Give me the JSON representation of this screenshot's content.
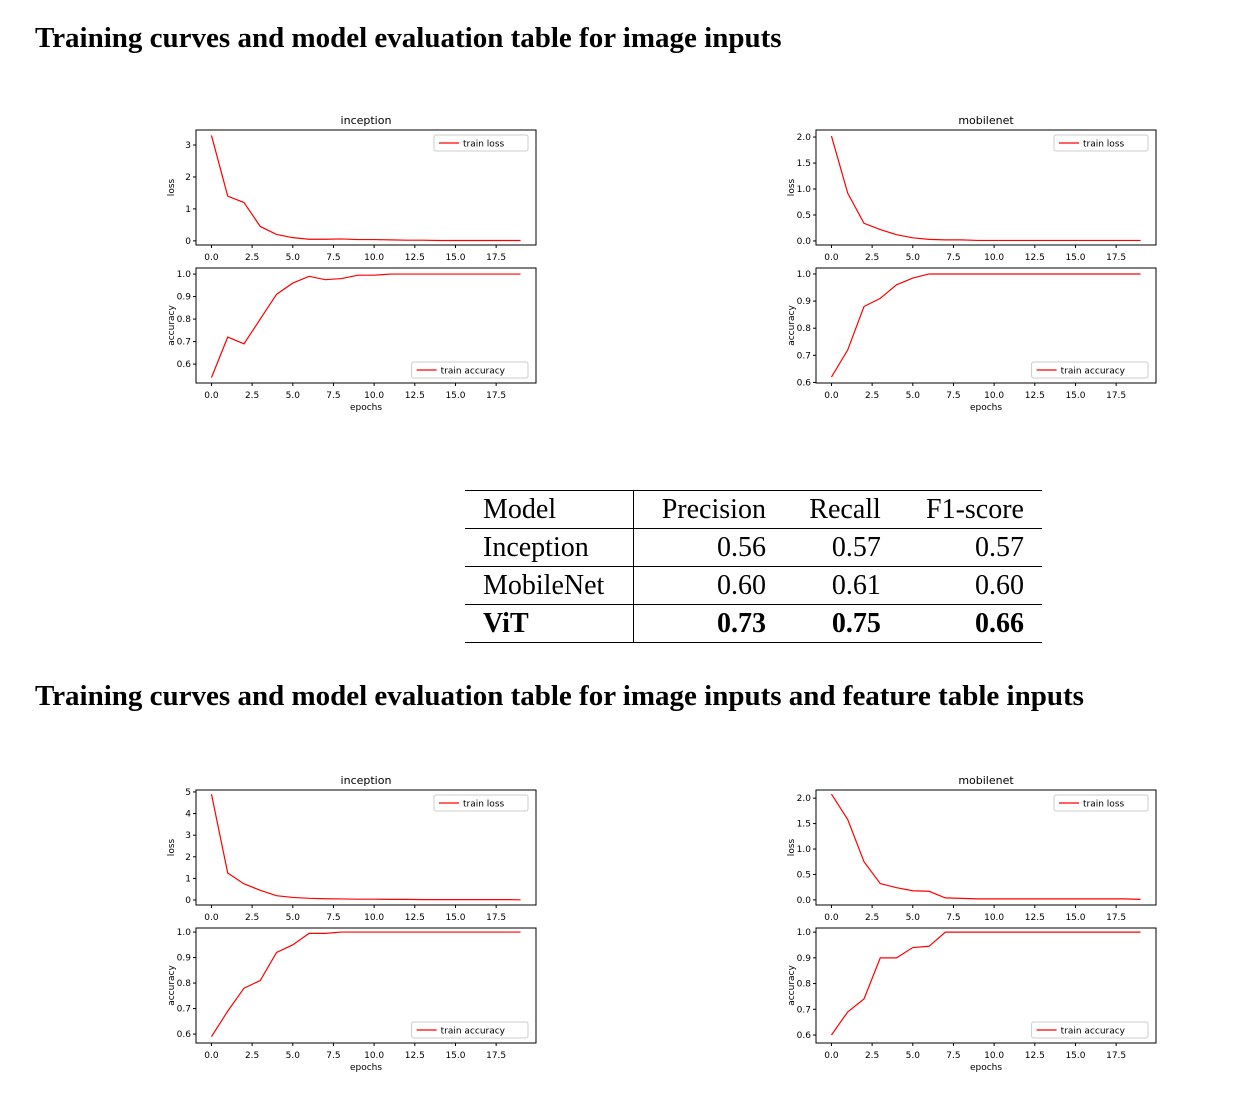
{
  "headings": [
    "Training curves and model evaluation table for image inputs",
    "Training curves and model evaluation table for image inputs and feature table inputs"
  ],
  "chart_data": [
    {
      "type": "line",
      "title": "inception",
      "ylabel": "loss",
      "legend": "upper right",
      "x": [
        0,
        1,
        2,
        3,
        4,
        5,
        6,
        7,
        8,
        9,
        10,
        11,
        12,
        13,
        14,
        15,
        16,
        17,
        18,
        19
      ],
      "xlim": [
        -0.95,
        19.95
      ],
      "xticks": [
        {
          "value": 0,
          "label": "0.0"
        },
        2.5,
        {
          "value": 5,
          "label": "5.0"
        },
        7.5,
        {
          "value": 10,
          "label": "10.0"
        },
        12.5,
        {
          "value": 15,
          "label": "15.0"
        },
        17.5
      ],
      "ylim": [
        -0.13,
        3.47
      ],
      "yticks": [
        0,
        1,
        2,
        3
      ],
      "series": [
        {
          "name": "train loss",
          "color": "#ff0000",
          "values": [
            3.3,
            1.4,
            1.2,
            0.45,
            0.2,
            0.1,
            0.05,
            0.05,
            0.06,
            0.04,
            0.04,
            0.03,
            0.02,
            0.02,
            0.01,
            0.01,
            0.01,
            0.01,
            0.01,
            0.01
          ]
        }
      ]
    },
    {
      "type": "line",
      "ylabel": "accuracy",
      "xlabel": "epochs",
      "legend": "lower right",
      "x": [
        0,
        1,
        2,
        3,
        4,
        5,
        6,
        7,
        8,
        9,
        10,
        11,
        12,
        13,
        14,
        15,
        16,
        17,
        18,
        19
      ],
      "xlim": [
        -0.95,
        19.95
      ],
      "xticks": [
        {
          "value": 0,
          "label": "0.0"
        },
        2.5,
        {
          "value": 5,
          "label": "5.0"
        },
        7.5,
        {
          "value": 10,
          "label": "10.0"
        },
        12.5,
        {
          "value": 15,
          "label": "15.0"
        },
        17.5
      ],
      "ylim": [
        0.516,
        1.027
      ],
      "yticks": [
        0.6,
        0.7,
        0.8,
        0.9,
        {
          "value": 1,
          "label": "1.0"
        }
      ],
      "series": [
        {
          "name": "train accuracy",
          "color": "#ff0000",
          "values": [
            0.54,
            0.72,
            0.69,
            0.8,
            0.91,
            0.96,
            0.99,
            0.975,
            0.98,
            0.995,
            0.995,
            1,
            1,
            1,
            1,
            1,
            1,
            1,
            1,
            1
          ]
        }
      ]
    },
    {
      "type": "line",
      "title": "mobilenet",
      "ylabel": "loss",
      "legend": "upper right",
      "x": [
        0,
        1,
        2,
        3,
        4,
        5,
        6,
        7,
        8,
        9,
        10,
        11,
        12,
        13,
        14,
        15,
        16,
        17,
        18,
        19
      ],
      "xlim": [
        -0.95,
        19.95
      ],
      "xticks": [
        {
          "value": 0,
          "label": "0.0"
        },
        2.5,
        {
          "value": 5,
          "label": "5.0"
        },
        7.5,
        {
          "value": 10,
          "label": "10.0"
        },
        12.5,
        {
          "value": 15,
          "label": "15.0"
        },
        17.5
      ],
      "ylim": [
        -0.078,
        2.136
      ],
      "yticks": [
        {
          "value": 0,
          "label": "0.0"
        },
        0.5,
        {
          "value": 1,
          "label": "1.0"
        },
        1.5,
        {
          "value": 2,
          "label": "2.0"
        }
      ],
      "series": [
        {
          "name": "train loss",
          "color": "#ff0000",
          "values": [
            2.02,
            0.92,
            0.34,
            0.22,
            0.12,
            0.06,
            0.03,
            0.02,
            0.02,
            0.01,
            0.01,
            0.01,
            0.01,
            0.01,
            0.01,
            0.01,
            0.01,
            0.01,
            0.01,
            0.01
          ]
        }
      ]
    },
    {
      "type": "line",
      "ylabel": "accuracy",
      "xlabel": "epochs",
      "legend": "lower right",
      "x": [
        0,
        1,
        2,
        3,
        4,
        5,
        6,
        7,
        8,
        9,
        10,
        11,
        12,
        13,
        14,
        15,
        16,
        17,
        18,
        19
      ],
      "xlim": [
        -0.95,
        19.95
      ],
      "xticks": [
        {
          "value": 0,
          "label": "0.0"
        },
        2.5,
        {
          "value": 5,
          "label": "5.0"
        },
        7.5,
        {
          "value": 10,
          "label": "10.0"
        },
        12.5,
        {
          "value": 15,
          "label": "15.0"
        },
        17.5
      ],
      "ylim": [
        0.598,
        1.022
      ],
      "yticks": [
        0.6,
        0.7,
        0.8,
        0.9,
        {
          "value": 1,
          "label": "1.0"
        }
      ],
      "series": [
        {
          "name": "train accuracy",
          "color": "#ff0000",
          "values": [
            0.62,
            0.72,
            0.88,
            0.91,
            0.96,
            0.985,
            1,
            1,
            1,
            1,
            1,
            1,
            1,
            1,
            1,
            1,
            1,
            1,
            1,
            1
          ]
        }
      ]
    },
    {
      "type": "line",
      "title": "inception",
      "ylabel": "loss",
      "legend": "upper right",
      "x": [
        0,
        1,
        2,
        3,
        4,
        5,
        6,
        7,
        8,
        9,
        10,
        11,
        12,
        13,
        14,
        15,
        16,
        17,
        18,
        19
      ],
      "xlim": [
        -0.95,
        19.95
      ],
      "xticks": [
        {
          "value": 0,
          "label": "0.0"
        },
        2.5,
        {
          "value": 5,
          "label": "5.0"
        },
        7.5,
        {
          "value": 10,
          "label": "10.0"
        },
        12.5,
        {
          "value": 15,
          "label": "15.0"
        },
        17.5
      ],
      "ylim": [
        -0.23,
        5.09
      ],
      "yticks": [
        0,
        1,
        2,
        3,
        4,
        5
      ],
      "series": [
        {
          "name": "train loss",
          "color": "#ff0000",
          "values": [
            4.9,
            1.25,
            0.75,
            0.45,
            0.2,
            0.12,
            0.08,
            0.06,
            0.05,
            0.04,
            0.04,
            0.03,
            0.03,
            0.02,
            0.02,
            0.02,
            0.02,
            0.02,
            0.02,
            0.01
          ]
        }
      ]
    },
    {
      "type": "line",
      "ylabel": "accuracy",
      "xlabel": "epochs",
      "legend": "lower right",
      "x": [
        0,
        1,
        2,
        3,
        4,
        5,
        6,
        7,
        8,
        9,
        10,
        11,
        12,
        13,
        14,
        15,
        16,
        17,
        18,
        19
      ],
      "xlim": [
        -0.95,
        19.95
      ],
      "xticks": [
        {
          "value": 0,
          "label": "0.0"
        },
        2.5,
        {
          "value": 5,
          "label": "5.0"
        },
        7.5,
        {
          "value": 10,
          "label": "10.0"
        },
        12.5,
        {
          "value": 15,
          "label": "15.0"
        },
        17.5
      ],
      "ylim": [
        0.565,
        1.016
      ],
      "yticks": [
        0.6,
        0.7,
        0.8,
        0.9,
        {
          "value": 1,
          "label": "1.0"
        }
      ],
      "series": [
        {
          "name": "train accuracy",
          "color": "#ff0000",
          "values": [
            0.59,
            0.69,
            0.78,
            0.81,
            0.92,
            0.95,
            0.995,
            0.995,
            1,
            1,
            1,
            1,
            1,
            1,
            1,
            1,
            1,
            1,
            1,
            1
          ]
        }
      ]
    },
    {
      "type": "line",
      "title": "mobilenet",
      "ylabel": "loss",
      "legend": "upper right",
      "x": [
        0,
        1,
        2,
        3,
        4,
        5,
        6,
        7,
        8,
        9,
        10,
        11,
        12,
        13,
        14,
        15,
        16,
        17,
        18,
        19
      ],
      "xlim": [
        -0.95,
        19.95
      ],
      "xticks": [
        {
          "value": 0,
          "label": "0.0"
        },
        2.5,
        {
          "value": 5,
          "label": "5.0"
        },
        7.5,
        {
          "value": 10,
          "label": "10.0"
        },
        12.5,
        {
          "value": 15,
          "label": "15.0"
        },
        17.5
      ],
      "ylim": [
        -0.1,
        2.16
      ],
      "yticks": [
        {
          "value": 0,
          "label": "0.0"
        },
        0.5,
        {
          "value": 1,
          "label": "1.0"
        },
        1.5,
        {
          "value": 2,
          "label": "2.0"
        }
      ],
      "series": [
        {
          "name": "train loss",
          "color": "#ff0000",
          "values": [
            2.08,
            1.58,
            0.75,
            0.32,
            0.24,
            0.18,
            0.17,
            0.04,
            0.03,
            0.02,
            0.02,
            0.02,
            0.02,
            0.02,
            0.02,
            0.02,
            0.02,
            0.02,
            0.02,
            0.01
          ]
        }
      ]
    },
    {
      "type": "line",
      "ylabel": "accuracy",
      "xlabel": "epochs",
      "legend": "lower right",
      "x": [
        0,
        1,
        2,
        3,
        4,
        5,
        6,
        7,
        8,
        9,
        10,
        11,
        12,
        13,
        14,
        15,
        16,
        17,
        18,
        19
      ],
      "xlim": [
        -0.95,
        19.95
      ],
      "xticks": [
        {
          "value": 0,
          "label": "0.0"
        },
        2.5,
        {
          "value": 5,
          "label": "5.0"
        },
        7.5,
        {
          "value": 10,
          "label": "10.0"
        },
        12.5,
        {
          "value": 15,
          "label": "15.0"
        },
        17.5
      ],
      "ylim": [
        0.569,
        1.016
      ],
      "yticks": [
        0.6,
        0.7,
        0.8,
        0.9,
        {
          "value": 1,
          "label": "1.0"
        }
      ],
      "series": [
        {
          "name": "train accuracy",
          "color": "#ff0000",
          "values": [
            0.6,
            0.69,
            0.74,
            0.9,
            0.9,
            0.94,
            0.945,
            1,
            1,
            1,
            1,
            1,
            1,
            1,
            1,
            1,
            1,
            1,
            1,
            1
          ]
        }
      ]
    }
  ],
  "table": {
    "header": [
      "Model",
      "Precision",
      "Recall",
      "F1-score"
    ],
    "rows": [
      [
        "Inception",
        "0.56",
        "0.57",
        "0.57"
      ],
      [
        "MobileNet",
        "0.60",
        "0.61",
        "0.60"
      ],
      [
        "ViT",
        "0.73",
        "0.75",
        "0.66"
      ]
    ]
  }
}
